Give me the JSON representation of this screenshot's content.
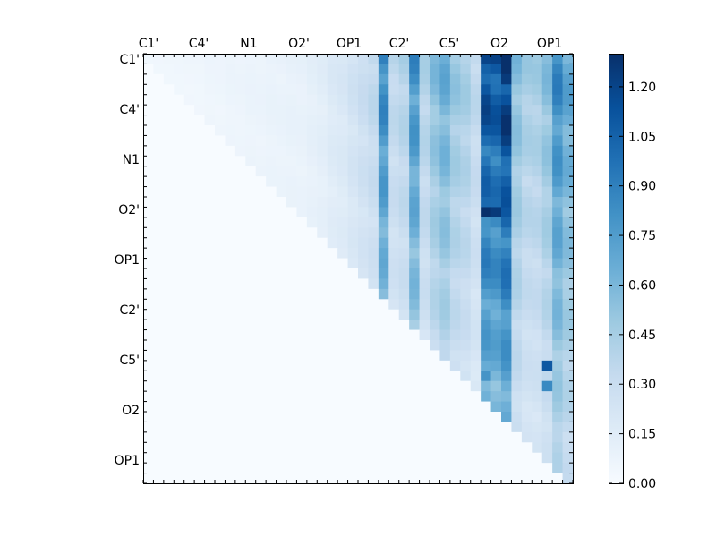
{
  "chart_data": {
    "type": "heatmap",
    "title": "",
    "xlabel": "",
    "ylabel": "",
    "x_tick_labels": [
      "C1'",
      "C4'",
      "N1",
      "O2'",
      "OP1",
      "C2'",
      "C5'",
      "O2",
      "OP1"
    ],
    "y_tick_labels": [
      "C1'",
      "C4'",
      "N1",
      "O2'",
      "OP1",
      "C2'",
      "C5'",
      "O2",
      "OP1"
    ],
    "x_label_position": "top",
    "grid_size": [
      42,
      42
    ],
    "cell_fill_rule": "blank (0) below the diagonal",
    "colormap": "Blues",
    "colorbar": {
      "min": 0.0,
      "max": 1.3,
      "ticks": [
        0.0,
        0.15,
        0.3,
        0.45,
        0.6,
        0.75,
        0.9,
        1.05,
        1.2
      ],
      "tick_labels": [
        "0.00",
        "0.15",
        "0.30",
        "0.45",
        "0.60",
        "0.75",
        "0.90",
        "1.05",
        "1.20"
      ],
      "placement": "right"
    },
    "column_profile": [
      0.05,
      0.05,
      0.05,
      0.05,
      0.05,
      0.05,
      0.06,
      0.06,
      0.07,
      0.07,
      0.08,
      0.08,
      0.09,
      0.09,
      0.1,
      0.1,
      0.12,
      0.14,
      0.18,
      0.2,
      0.25,
      0.3,
      0.35,
      0.85,
      0.35,
      0.4,
      0.8,
      0.4,
      0.55,
      0.65,
      0.5,
      0.45,
      0.35,
      1.15,
      1.1,
      1.25,
      0.55,
      0.45,
      0.45,
      0.55,
      0.85,
      0.7
    ],
    "highlights": [
      {
        "row": 15,
        "col": 33,
        "value": 1.3
      },
      {
        "row": 15,
        "col": 34,
        "value": 1.25
      },
      {
        "row": 2,
        "col": 35,
        "value": 1.25
      },
      {
        "row": 30,
        "col": 39,
        "value": 1.1
      },
      {
        "row": 31,
        "col": 33,
        "value": 0.8
      },
      {
        "row": 32,
        "col": 39,
        "value": 0.85
      }
    ]
  },
  "colors": {
    "background": "#ffffff",
    "axes_edge": "#000000",
    "colormap_stops": [
      "#f7fbff",
      "#deebf7",
      "#c6dbef",
      "#9ecae1",
      "#6baed6",
      "#4292c6",
      "#2171b5",
      "#08519c",
      "#08306b"
    ]
  }
}
